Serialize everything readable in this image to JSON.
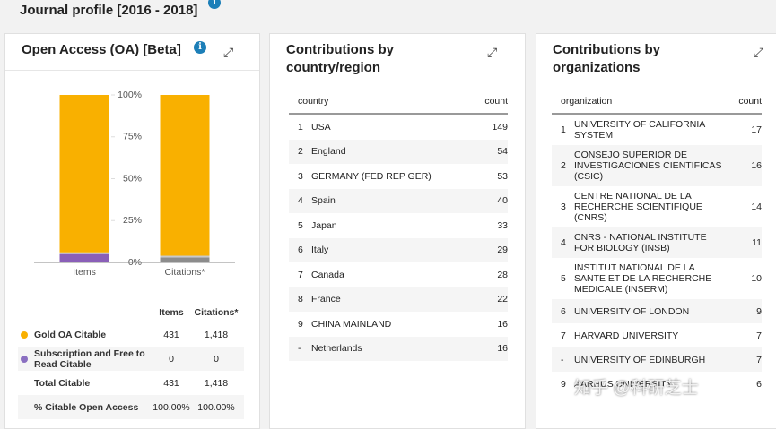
{
  "header": {
    "title": "Journal profile [2016 - 2018]"
  },
  "oa_panel": {
    "title": "Open Access (OA) [Beta]",
    "legend_table": {
      "columns": [
        "Items",
        "Citations*"
      ],
      "rows": [
        {
          "label": "Gold OA Citable",
          "items": "431",
          "citations": "1,418",
          "color": "#f9b000"
        },
        {
          "label": "Subscription and Free to Read Citable",
          "items": "0",
          "citations": "0",
          "color": "#8a6fc1"
        },
        {
          "label": "Total Citable",
          "items": "431",
          "citations": "1,418"
        },
        {
          "label": "% Citable Open Access",
          "items": "100.00%",
          "citations": "100.00%"
        }
      ]
    }
  },
  "chart_data": {
    "type": "stacked-bar",
    "categories": [
      "Items",
      "Citations*"
    ],
    "series": [
      {
        "color": "#8a5fb8",
        "values": [
          5,
          0
        ]
      },
      {
        "color": "#8c8c8c",
        "values": [
          0,
          3
        ]
      },
      {
        "color": "#c9c9c9",
        "values": [
          1,
          1
        ]
      },
      {
        "color": "#f9b000",
        "values": [
          94,
          96
        ]
      }
    ],
    "ylim": [
      0,
      100
    ],
    "yticks": [
      {
        "value": 0,
        "label": "0%"
      },
      {
        "value": 25,
        "label": "25%"
      },
      {
        "value": 50,
        "label": "50%"
      },
      {
        "value": 75,
        "label": "75%"
      },
      {
        "value": 100,
        "label": "100%"
      }
    ]
  },
  "country_panel": {
    "title": "Contributions by country/region",
    "columns": [
      "country",
      "count"
    ],
    "rows": [
      [
        "1",
        "USA",
        "149"
      ],
      [
        "2",
        "England",
        "54"
      ],
      [
        "3",
        "GERMANY (FED REP GER)",
        "53"
      ],
      [
        "4",
        "Spain",
        "40"
      ],
      [
        "5",
        "Japan",
        "33"
      ],
      [
        "6",
        "Italy",
        "29"
      ],
      [
        "7",
        "Canada",
        "28"
      ],
      [
        "8",
        "France",
        "22"
      ],
      [
        "9",
        "CHINA MAINLAND",
        "16"
      ],
      [
        "-",
        "Netherlands",
        "16"
      ]
    ]
  },
  "org_panel": {
    "title": "Contributions by organizations",
    "columns": [
      "organization",
      "count"
    ],
    "rows": [
      [
        "1",
        "UNIVERSITY OF CALIFORNIA SYSTEM",
        "17"
      ],
      [
        "2",
        "CONSEJO SUPERIOR DE INVESTIGACIONES CIENTIFICAS (CSIC)",
        "16"
      ],
      [
        "3",
        "CENTRE NATIONAL DE LA RECHERCHE SCIENTIFIQUE (CNRS)",
        "14"
      ],
      [
        "4",
        "CNRS - NATIONAL INSTITUTE FOR BIOLOGY (INSB)",
        "11"
      ],
      [
        "5",
        "INSTITUT NATIONAL DE LA SANTE ET DE LA RECHERCHE MEDICALE (INSERM)",
        "10"
      ],
      [
        "6",
        "UNIVERSITY OF LONDON",
        "9"
      ],
      [
        "7",
        "HARVARD UNIVERSITY",
        "7"
      ],
      [
        "-",
        "UNIVERSITY OF EDINBURGH",
        "7"
      ],
      [
        "9",
        "AARHUS UNIVERSITY",
        "6"
      ]
    ]
  },
  "watermark": "知乎 @科研芝士"
}
